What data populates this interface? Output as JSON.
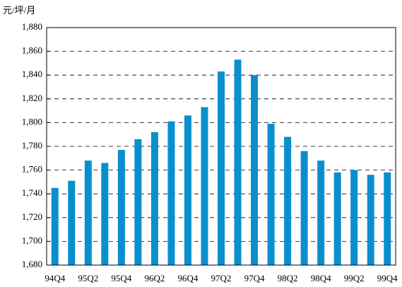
{
  "chart_data": {
    "type": "bar",
    "y_label": "元/坪/月",
    "categories": [
      "94Q4",
      null,
      "95Q2",
      null,
      "95Q4",
      null,
      "96Q2",
      null,
      "96Q4",
      null,
      "97Q2",
      null,
      "97Q4",
      null,
      "98Q2",
      null,
      "98Q4",
      null,
      "99Q2",
      null,
      "99Q4"
    ],
    "values": [
      1745,
      1751,
      1768,
      1766,
      1777,
      1786,
      1792,
      1801,
      1806,
      1813,
      1843,
      1853,
      1840,
      1799,
      1788,
      1776,
      1768,
      1758,
      1760,
      1756,
      1758
    ],
    "color": "#0a8fce",
    "ylim": [
      1680,
      1880
    ],
    "yticks": [
      {
        "value": 1680,
        "label": "1,680"
      },
      {
        "value": 1700,
        "label": "1,700"
      },
      {
        "value": 1720,
        "label": "1,720"
      },
      {
        "value": 1740,
        "label": "1,740"
      },
      {
        "value": 1760,
        "label": "1,760"
      },
      {
        "value": 1780,
        "label": "1,780"
      },
      {
        "value": 1800,
        "label": "1,800"
      },
      {
        "value": 1820,
        "label": "1,820"
      },
      {
        "value": 1840,
        "label": "1,840"
      },
      {
        "value": 1860,
        "label": "1,860"
      },
      {
        "value": 1880,
        "label": "1,880"
      }
    ],
    "grid": true
  }
}
